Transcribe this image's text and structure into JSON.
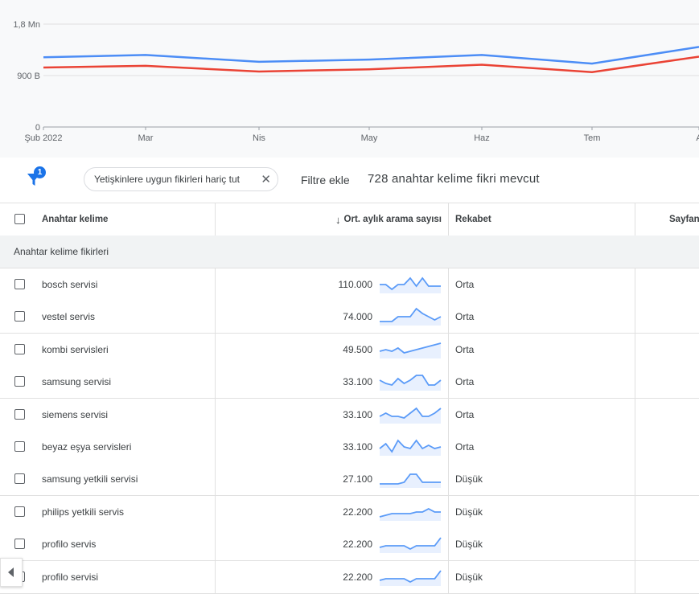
{
  "chart": {
    "y_ticks": [
      "1,8 Mn",
      "900 B",
      "0"
    ],
    "x_ticks": [
      "Şub 2022",
      "Mar",
      "Nis",
      "May",
      "Haz",
      "Tem",
      "A"
    ]
  },
  "chart_data": {
    "type": "line",
    "categories": [
      "Şub 2022",
      "Mar",
      "Nis",
      "May",
      "Haz",
      "Tem",
      "A"
    ],
    "ylim": [
      0,
      1800000
    ],
    "y_tick_labels": [
      "1,8 Mn",
      "900 B",
      "0"
    ],
    "series": [
      {
        "color": "#4c8df6",
        "values": [
          1220000,
          1260000,
          1140000,
          1180000,
          1260000,
          1110000,
          1400000
        ]
      },
      {
        "color": "#ea4335",
        "values": [
          1040000,
          1070000,
          970000,
          1010000,
          1090000,
          960000,
          1230000
        ]
      }
    ],
    "grid": true
  },
  "filter_bar": {
    "badge": "1",
    "chip_label": "Yetişkinlere uygun fikirleri hariç tut",
    "chip_close": "✕",
    "add_filter": "Filtre ekle",
    "idea_count": "728 anahtar kelime fikri mevcut"
  },
  "table": {
    "headers": {
      "keyword": "Anahtar kelime",
      "volume": "Ort. aylık arama sayısı",
      "competition": "Rekabet",
      "page": "Sayfan"
    },
    "sort_arrow": "↓",
    "group_label": "Anahtar kelime fikirleri",
    "rows": [
      {
        "keyword": "bosch servisi",
        "volume": "110.000",
        "competition": "Orta",
        "trend": [
          5,
          5,
          2,
          5,
          5,
          9,
          4,
          9,
          4,
          4,
          4
        ]
      },
      {
        "keyword": "vestel servis",
        "volume": "74.000",
        "competition": "Orta",
        "trend": [
          2,
          2,
          2,
          5,
          5,
          5,
          10,
          7,
          5,
          3,
          5
        ]
      },
      {
        "keyword": "kombi servisleri",
        "volume": "49.500",
        "competition": "Orta",
        "trend": [
          4,
          5,
          4,
          6,
          3,
          4,
          5,
          6,
          7,
          8,
          9
        ]
      },
      {
        "keyword": "samsung servisi",
        "volume": "33.100",
        "competition": "Orta",
        "trend": [
          6,
          4,
          3,
          7,
          4,
          6,
          9,
          9,
          3,
          3,
          6
        ]
      },
      {
        "keyword": "siemens servisi",
        "volume": "33.100",
        "competition": "Orta",
        "trend": [
          4,
          6,
          4,
          4,
          3,
          6,
          9,
          4,
          4,
          6,
          9
        ]
      },
      {
        "keyword": "beyaz eşya servisleri",
        "volume": "33.100",
        "competition": "Orta",
        "trend": [
          4,
          7,
          2,
          9,
          5,
          4,
          9,
          4,
          6,
          4,
          5
        ]
      },
      {
        "keyword": "samsung yetkili servisi",
        "volume": "27.100",
        "competition": "Düşük",
        "trend": [
          2,
          2,
          2,
          2,
          3,
          8,
          8,
          3,
          3,
          3,
          3
        ]
      },
      {
        "keyword": "philips yetkili servis",
        "volume": "22.200",
        "competition": "Düşük",
        "trend": [
          2,
          3,
          4,
          4,
          4,
          4,
          5,
          5,
          7,
          5,
          5
        ]
      },
      {
        "keyword": "profilo servis",
        "volume": "22.200",
        "competition": "Düşük",
        "trend": [
          3,
          4,
          4,
          4,
          4,
          2,
          4,
          4,
          4,
          4,
          9
        ]
      },
      {
        "keyword": "profilo servisi",
        "volume": "22.200",
        "competition": "Düşük",
        "trend": [
          3,
          4,
          4,
          4,
          4,
          2,
          4,
          4,
          4,
          4,
          9
        ]
      }
    ]
  }
}
